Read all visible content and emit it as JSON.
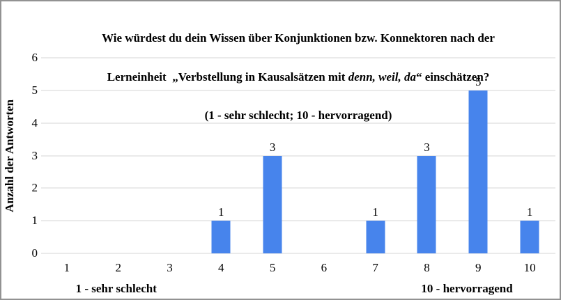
{
  "chart_data": {
    "type": "bar",
    "title": "Wie würdest du dein Wissen über Konjunktionen bzw. Konnektoren nach der Lerneinheit „Verbstellung in Kausalsätzen mit denn, weil, da“ einschätzen? (1 - sehr schlecht; 10 - hervorragend)",
    "title_lines": {
      "line1": "Wie würdest du dein Wissen über Konjunktionen bzw. Konnektoren nach der",
      "line2_prefix": "Lerneinheit  „Verbstellung in Kausalsätzen mit ",
      "line2_italic": "denn, weil, da",
      "line2_suffix": "“ einschätzen?",
      "line3": "(1 - sehr schlecht; 10 - hervorragend)"
    },
    "categories": [
      "1",
      "2",
      "3",
      "4",
      "5",
      "6",
      "7",
      "8",
      "9",
      "10"
    ],
    "values": [
      0,
      0,
      0,
      1,
      3,
      0,
      1,
      3,
      5,
      1
    ],
    "xlabel_left": "1 - sehr schlecht",
    "xlabel_right": "10 - hervorragend",
    "ylabel": "Anzahl der Antworten",
    "ylim": [
      0,
      6
    ],
    "yticks": [
      0,
      1,
      2,
      3,
      4,
      5,
      6
    ],
    "grid": true,
    "legend_position": "none",
    "bar_color": "#4784ec",
    "gridline_color": "#d6d6d6",
    "text_color": "#000000",
    "background_color": "#ffffff"
  }
}
